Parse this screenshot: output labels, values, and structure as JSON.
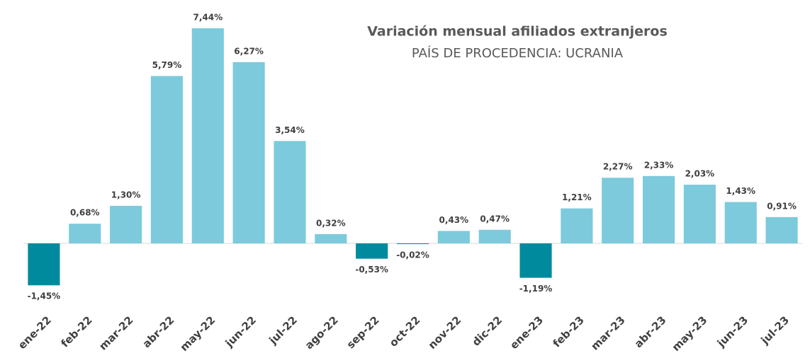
{
  "chart_data": {
    "type": "bar",
    "title": "Variación mensual afiliados extranjeros",
    "subtitle": "PAÍS DE PROCEDENCIA: UCRANIA",
    "categories": [
      "ene-22",
      "feb-22",
      "mar-22",
      "abr-22",
      "may-22",
      "jun-22",
      "jul-22",
      "ago-22",
      "sep-22",
      "oct-22",
      "nov-22",
      "dic-22",
      "ene-23",
      "feb-23",
      "mar-23",
      "abr-23",
      "may-23",
      "jun-23",
      "jul-23"
    ],
    "values": [
      -1.45,
      0.68,
      1.3,
      5.79,
      7.44,
      6.27,
      3.54,
      0.32,
      -0.53,
      -0.02,
      0.43,
      0.47,
      -1.19,
      1.21,
      2.27,
      2.33,
      2.03,
      1.43,
      0.91
    ],
    "value_labels": [
      "-1,45%",
      "0,68%",
      "1,30%",
      "5,79%",
      "7,44%",
      "6,27%",
      "3,54%",
      "0,32%",
      "-0,53%",
      "-0,02%",
      "0,43%",
      "0,47%",
      "-1,19%",
      "1,21%",
      "2,27%",
      "2,33%",
      "2,03%",
      "1,43%",
      "0,91%"
    ],
    "color": "#7ccadc",
    "negative_color": "#008a9e"
  }
}
